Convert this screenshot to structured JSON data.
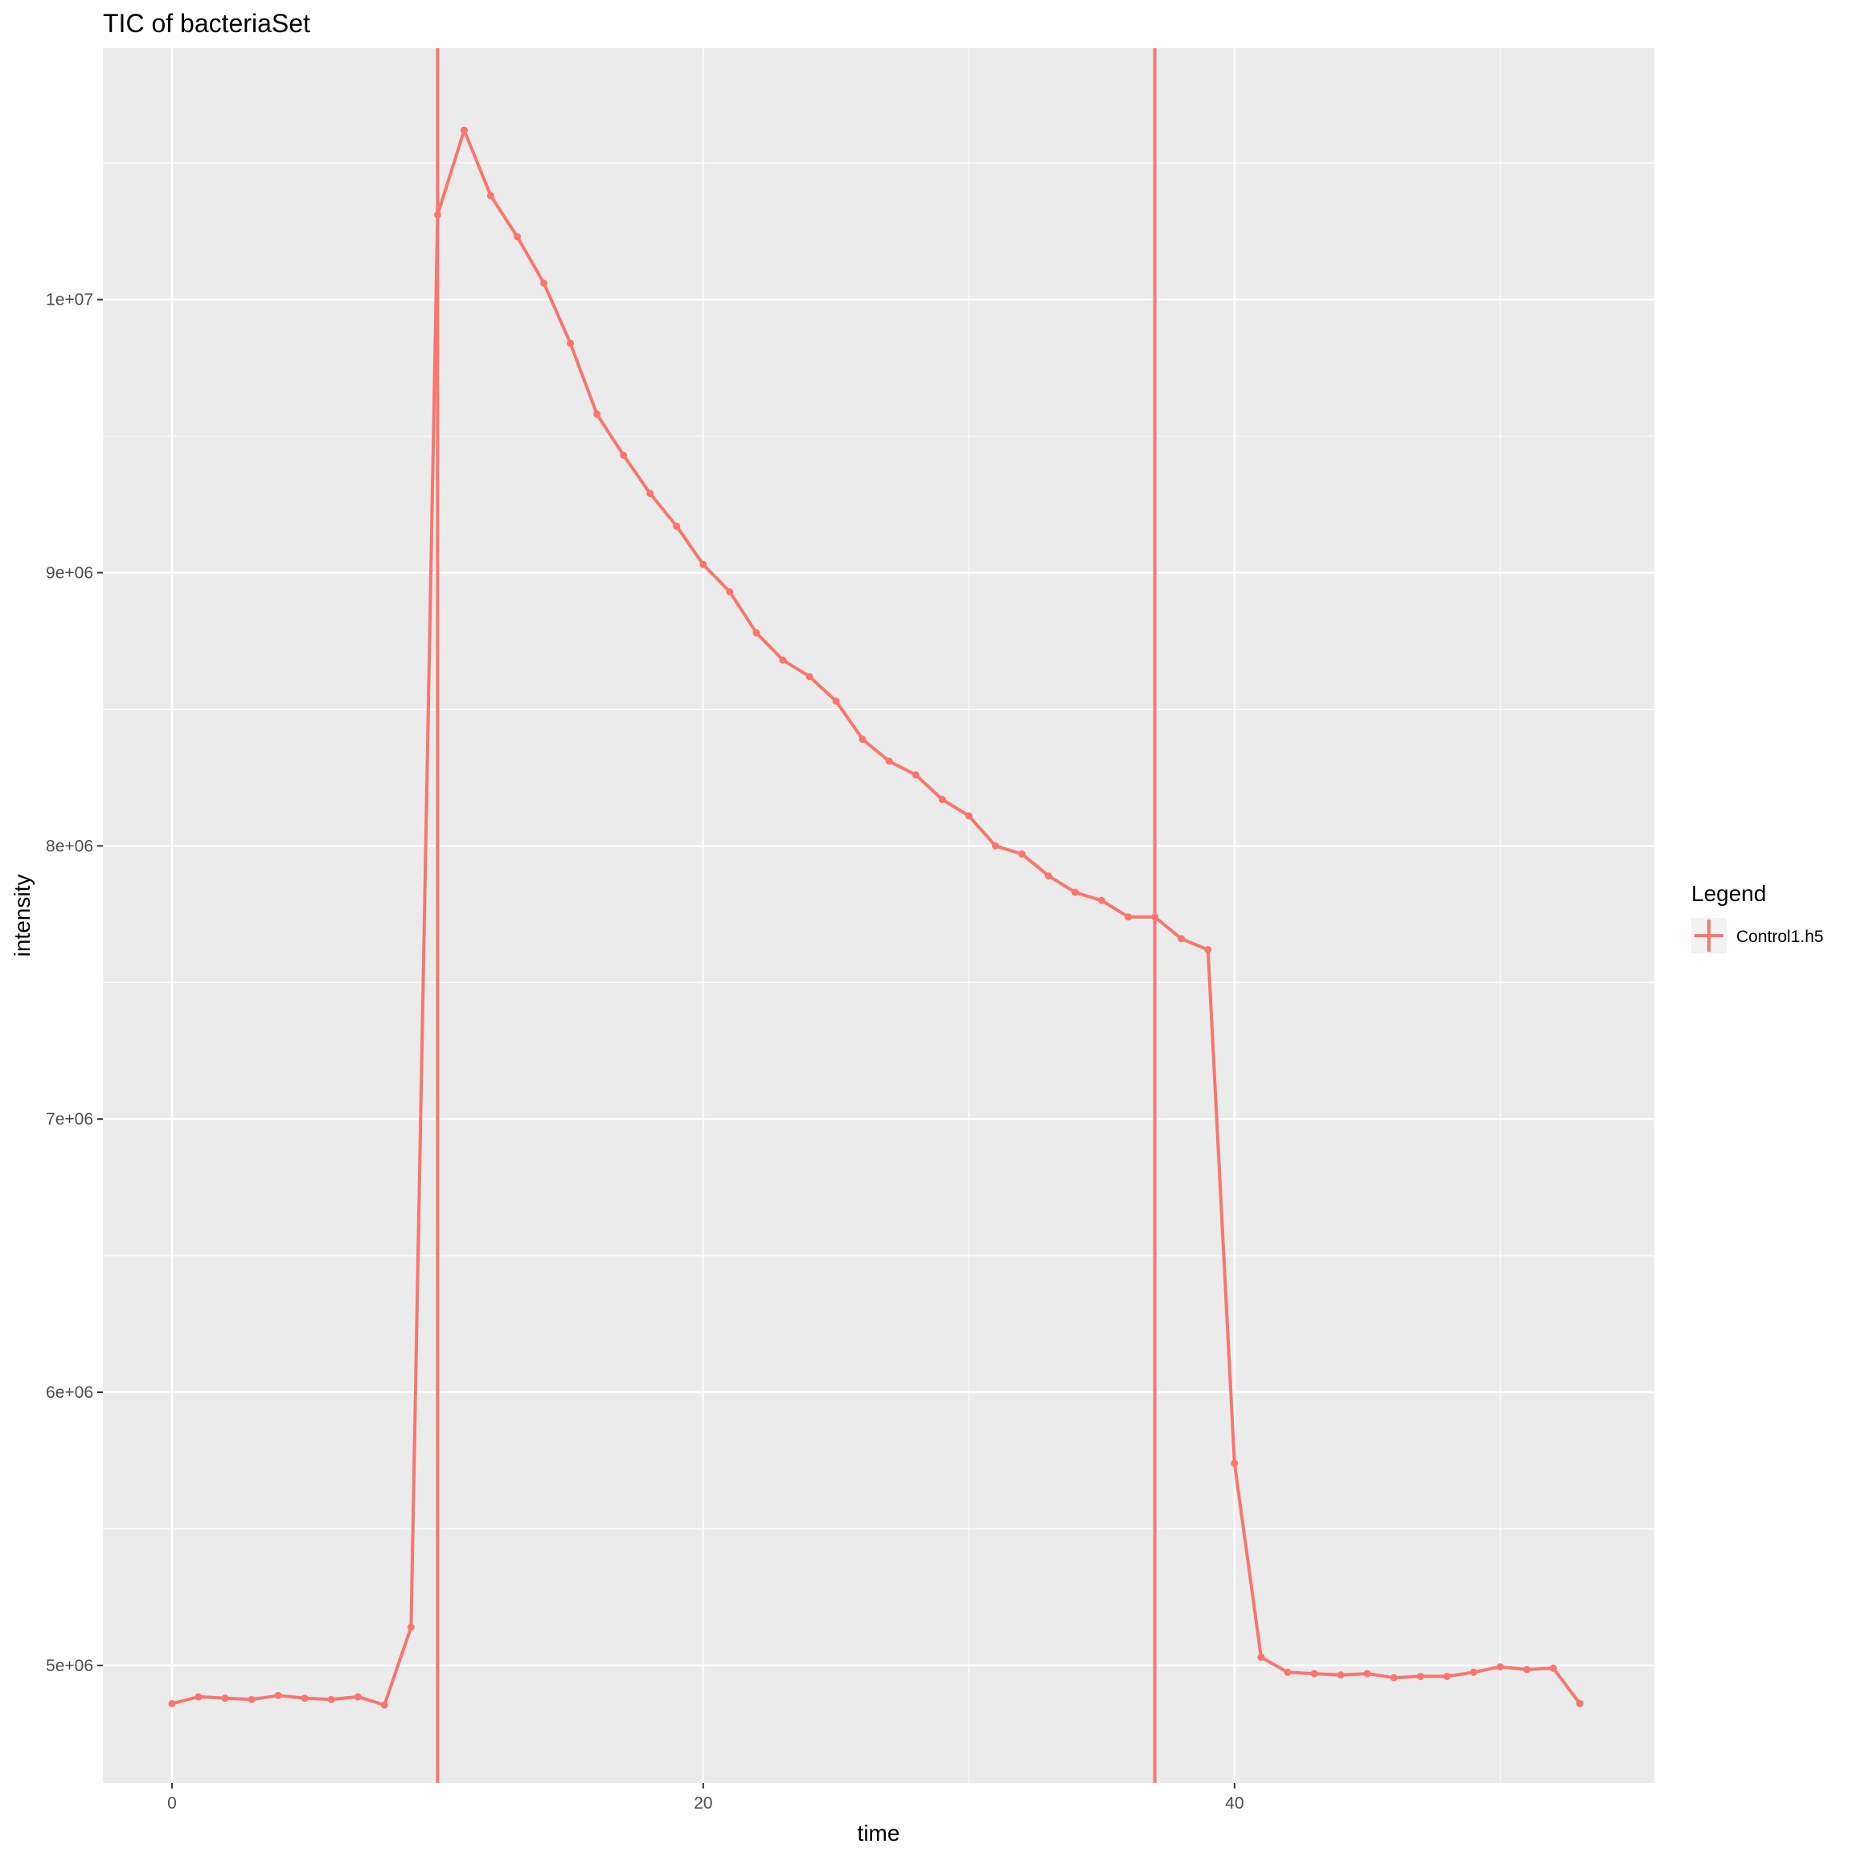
{
  "chart_data": {
    "type": "line",
    "title": "TIC of bacteriaSet",
    "xlabel": "time",
    "ylabel": "intensity",
    "xlim": [
      -2.6,
      55.8
    ],
    "ylim": [
      4570000,
      10920000
    ],
    "x_ticks": [
      {
        "value": 0,
        "label": "0"
      },
      {
        "value": 20,
        "label": "20"
      },
      {
        "value": 40,
        "label": "40"
      }
    ],
    "x_minor_ticks": [
      10,
      30,
      50
    ],
    "y_ticks": [
      {
        "value": 5000000,
        "label": "5e+06"
      },
      {
        "value": 6000000,
        "label": "6e+06"
      },
      {
        "value": 7000000,
        "label": "7e+06"
      },
      {
        "value": 8000000,
        "label": "8e+06"
      },
      {
        "value": 9000000,
        "label": "9e+06"
      },
      {
        "value": 10000000,
        "label": "1e+07"
      }
    ],
    "y_minor_ticks": [
      5500000,
      6500000,
      7500000,
      8500000,
      9500000,
      10500000
    ],
    "grid": true,
    "background": "#ebebeb",
    "series_color": "#f8766d",
    "vlines": [
      10,
      37
    ],
    "series": [
      {
        "name": "Control1.h5",
        "x": [
          0,
          1,
          2,
          3,
          4,
          5,
          6,
          7,
          8,
          9,
          10,
          11,
          12,
          13,
          14,
          15,
          16,
          17,
          18,
          19,
          20,
          21,
          22,
          23,
          24,
          25,
          26,
          27,
          28,
          29,
          30,
          31,
          32,
          33,
          34,
          35,
          36,
          37,
          38,
          39,
          40,
          41,
          42,
          43,
          44,
          45,
          46,
          47,
          48,
          49,
          50,
          51,
          52,
          53
        ],
        "y": [
          4860000,
          4885000,
          4880000,
          4875000,
          4890000,
          4880000,
          4875000,
          4885000,
          4855000,
          5140000,
          10310000,
          10620000,
          10380000,
          10230000,
          10060000,
          9840000,
          9580000,
          9430000,
          9290000,
          9170000,
          9030000,
          8930000,
          8780000,
          8680000,
          8620000,
          8530000,
          8390000,
          8310000,
          8260000,
          8170000,
          8110000,
          8000000,
          7970000,
          7890000,
          7830000,
          7800000,
          7740000,
          7740000,
          7660000,
          7620000,
          5740000,
          5030000,
          4975000,
          4970000,
          4965000,
          4970000,
          4955000,
          4960000,
          4960000,
          4975000,
          4995000,
          4985000,
          4990000,
          4860000
        ]
      }
    ],
    "legend": {
      "title": "Legend",
      "position": "right",
      "entries": [
        {
          "label": "Control1.h5",
          "color": "#f8766d"
        }
      ]
    }
  }
}
